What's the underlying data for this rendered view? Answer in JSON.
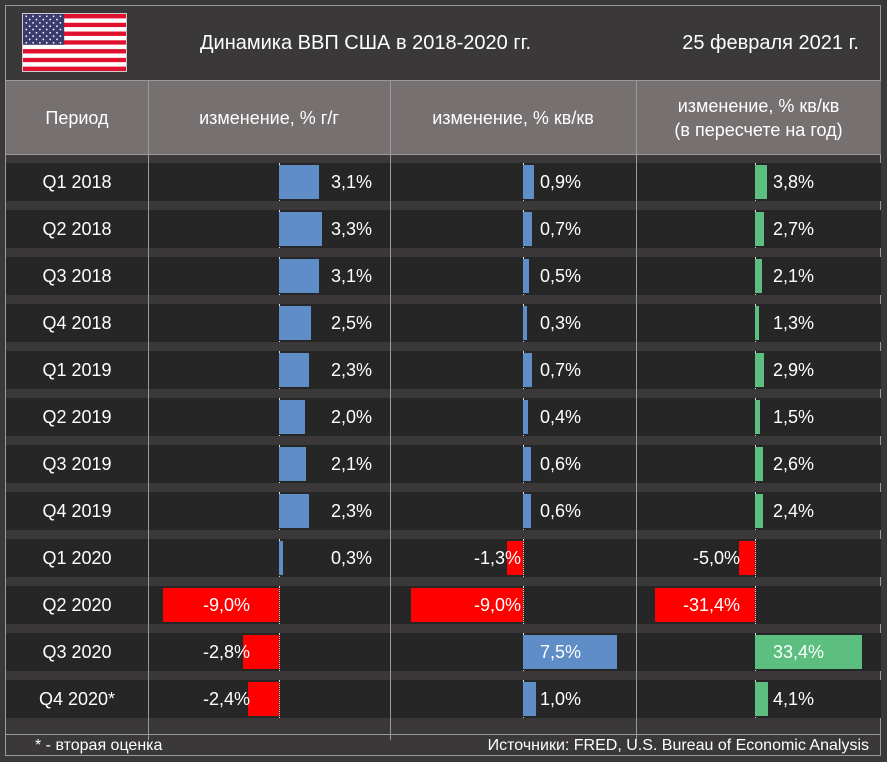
{
  "title": "Динамика ВВП США в 2018-2020 гг.",
  "date": "25 февраля 2021 г.",
  "flag": "us-flag",
  "headers": {
    "period": "Период",
    "yoy": "изменение, % г/г",
    "qoq": "изменение, % кв/кв",
    "qoq_ann_line1": "изменение, % кв/кв",
    "qoq_ann_line2": "(в пересчете на год)"
  },
  "footnote": "* - вторая оценка",
  "sources": "Источники:  FRED, U.S. Bureau of Economic Analysis",
  "colors": {
    "yoy_positive": "#5f8dc8",
    "qoq_positive": "#5f8dc8",
    "ann_positive": "#5cbf7f",
    "negative": "#ff0000",
    "background": "#262626",
    "header": "#767170"
  },
  "chart_data": {
    "type": "table",
    "categories": [
      "Q1 2018",
      "Q2 2018",
      "Q3 2018",
      "Q4 2018",
      "Q1 2019",
      "Q2 2019",
      "Q3 2019",
      "Q4 2019",
      "Q1 2020",
      "Q2 2020",
      "Q3 2020",
      "Q4 2020*"
    ],
    "series": [
      {
        "name": "изменение, % г/г",
        "values": [
          3.1,
          3.3,
          3.1,
          2.5,
          2.3,
          2.0,
          2.1,
          2.3,
          0.3,
          -9.0,
          -2.8,
          -2.4
        ],
        "labels": [
          "3,1%",
          "3,3%",
          "3,1%",
          "2,5%",
          "2,3%",
          "2,0%",
          "2,1%",
          "2,3%",
          "0,3%",
          "-9,0%",
          "-2,8%",
          "-2,4%"
        ]
      },
      {
        "name": "изменение, % кв/кв",
        "values": [
          0.9,
          0.7,
          0.5,
          0.3,
          0.7,
          0.4,
          0.6,
          0.6,
          -1.3,
          -9.0,
          7.5,
          1.0
        ],
        "labels": [
          "0,9%",
          "0,7%",
          "0,5%",
          "0,3%",
          "0,7%",
          "0,4%",
          "0,6%",
          "0,6%",
          "-1,3%",
          "-9,0%",
          "7,5%",
          "1,0%"
        ]
      },
      {
        "name": "изменение, % кв/кв (в пересчете на год)",
        "values": [
          3.8,
          2.7,
          2.1,
          1.3,
          2.9,
          1.5,
          2.6,
          2.4,
          -5.0,
          -31.4,
          33.4,
          4.1
        ],
        "labels": [
          "3,8%",
          "2,7%",
          "2,1%",
          "1,3%",
          "2,9%",
          "1,5%",
          "2,6%",
          "2,4%",
          "-5,0%",
          "-31,4%",
          "33,4%",
          "4,1%"
        ]
      }
    ]
  }
}
